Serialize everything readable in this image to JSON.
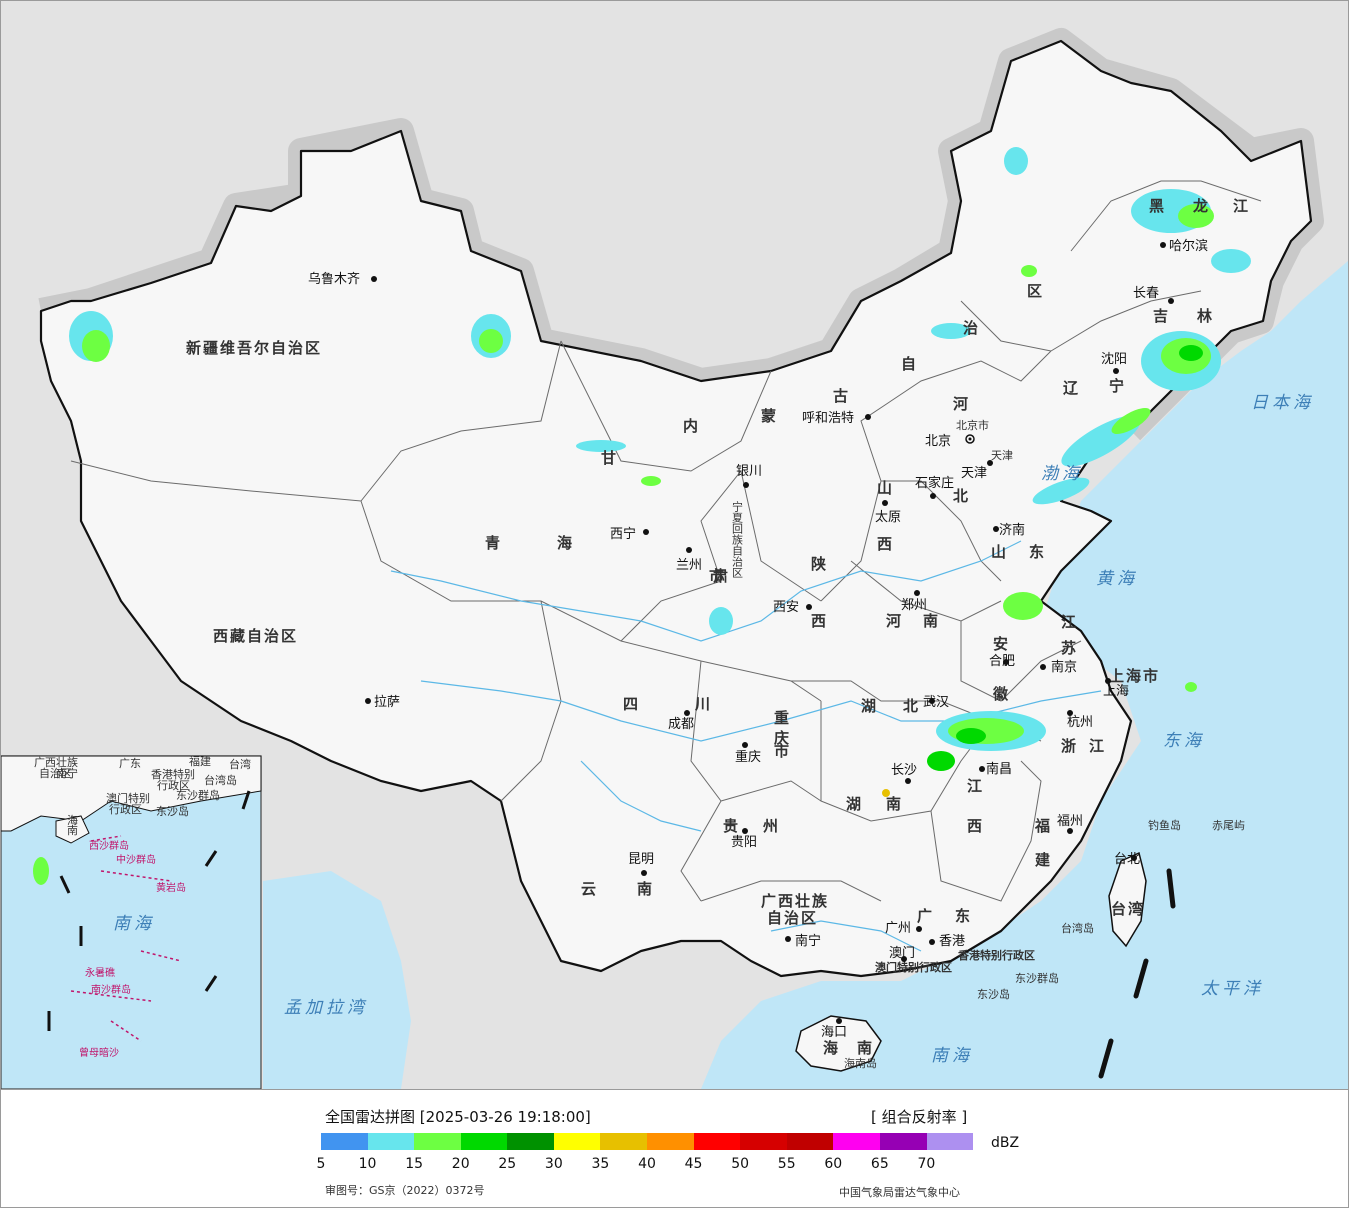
{
  "map": {
    "province_labels": [
      {
        "id": "xinjiang",
        "text": "新疆维吾尔自治区"
      },
      {
        "id": "xizang",
        "text": "西藏自治区"
      },
      {
        "id": "qinghai-1",
        "text": "青"
      },
      {
        "id": "qinghai-2",
        "text": "海"
      },
      {
        "id": "gansu-1",
        "text": "甘"
      },
      {
        "id": "gansu-2",
        "text": "肃"
      },
      {
        "id": "neimenggu-1",
        "text": "内"
      },
      {
        "id": "neimenggu-2",
        "text": "蒙"
      },
      {
        "id": "neimenggu-3",
        "text": "古"
      },
      {
        "id": "neimenggu-4",
        "text": "自"
      },
      {
        "id": "neimenggu-5",
        "text": "治"
      },
      {
        "id": "neimenggu-6",
        "text": "区"
      },
      {
        "id": "heilongjiang-1",
        "text": "黑"
      },
      {
        "id": "heilongjiang-2",
        "text": "龙"
      },
      {
        "id": "heilongjiang-3",
        "text": "江"
      },
      {
        "id": "jilin-1",
        "text": "吉"
      },
      {
        "id": "jilin-2",
        "text": "林"
      },
      {
        "id": "liaoning-1",
        "text": "辽"
      },
      {
        "id": "liaoning-2",
        "text": "宁"
      },
      {
        "id": "hebei-1",
        "text": "河"
      },
      {
        "id": "hebei-2",
        "text": "北"
      },
      {
        "id": "shanxi-1",
        "text": "山"
      },
      {
        "id": "shanxi-2",
        "text": "西"
      },
      {
        "id": "shandong-1",
        "text": "山"
      },
      {
        "id": "shandong-2",
        "text": "东"
      },
      {
        "id": "shaanxi-1",
        "text": "陕"
      },
      {
        "id": "shaanxi-2",
        "text": "西"
      },
      {
        "id": "henan-1",
        "text": "河"
      },
      {
        "id": "henan-2",
        "text": "南"
      },
      {
        "id": "jiangsu-1",
        "text": "江"
      },
      {
        "id": "jiangsu-2",
        "text": "苏"
      },
      {
        "id": "anhui-1",
        "text": "安"
      },
      {
        "id": "anhui-2",
        "text": "徽"
      },
      {
        "id": "shanghai",
        "text": "上海市"
      },
      {
        "id": "zhejiang-1",
        "text": "浙"
      },
      {
        "id": "zhejiang-2",
        "text": "江"
      },
      {
        "id": "hubei-1",
        "text": "湖"
      },
      {
        "id": "hubei-2",
        "text": "北"
      },
      {
        "id": "sichuan-1",
        "text": "四"
      },
      {
        "id": "sichuan-2",
        "text": "川"
      },
      {
        "id": "chongqing-1",
        "text": "重"
      },
      {
        "id": "chongqing-2",
        "text": "庆"
      },
      {
        "id": "chongqing-3",
        "text": "市"
      },
      {
        "id": "hunan-1",
        "text": "湖"
      },
      {
        "id": "hunan-2",
        "text": "南"
      },
      {
        "id": "jiangxi-1",
        "text": "江"
      },
      {
        "id": "jiangxi-2",
        "text": "西"
      },
      {
        "id": "fujian-1",
        "text": "福"
      },
      {
        "id": "fujian-2",
        "text": "建"
      },
      {
        "id": "guizhou-1",
        "text": "贵"
      },
      {
        "id": "guizhou-2",
        "text": "州"
      },
      {
        "id": "yunnan-1",
        "text": "云"
      },
      {
        "id": "yunnan-2",
        "text": "南"
      },
      {
        "id": "guangxi-1",
        "text": "广西壮族"
      },
      {
        "id": "guangxi-2",
        "text": "自治区"
      },
      {
        "id": "guangdong-1",
        "text": "广"
      },
      {
        "id": "guangdong-2",
        "text": "东"
      },
      {
        "id": "hainan-1",
        "text": "海"
      },
      {
        "id": "hainan-2",
        "text": "南"
      },
      {
        "id": "ningxia",
        "text": "宁夏回族自治区"
      },
      {
        "id": "tianjin",
        "text": "天津"
      },
      {
        "id": "beijing-small",
        "text": "北京市"
      },
      {
        "id": "taiwan",
        "text": "台湾"
      },
      {
        "id": "hongkong-sar",
        "text": "香港特别行政区"
      },
      {
        "id": "macao-sar",
        "text": "澳门特别行政区"
      },
      {
        "id": "gansu-city",
        "text": "市"
      }
    ],
    "cities": [
      {
        "id": "urumqi",
        "text": "乌鲁木齐"
      },
      {
        "id": "lhasa",
        "text": "拉萨"
      },
      {
        "id": "xining",
        "text": "西宁"
      },
      {
        "id": "lanzhou",
        "text": "兰州"
      },
      {
        "id": "yinchuan",
        "text": "银川"
      },
      {
        "id": "hohhot",
        "text": "呼和浩特"
      },
      {
        "id": "harbin",
        "text": "哈尔滨"
      },
      {
        "id": "changchun",
        "text": "长春"
      },
      {
        "id": "shenyang",
        "text": "沈阳"
      },
      {
        "id": "beijing",
        "text": "北京"
      },
      {
        "id": "tianjin-city",
        "text": "天津"
      },
      {
        "id": "shijiazhuang",
        "text": "石家庄"
      },
      {
        "id": "taiyuan",
        "text": "太原"
      },
      {
        "id": "jinan",
        "text": "济南"
      },
      {
        "id": "zhengzhou",
        "text": "郑州"
      },
      {
        "id": "xian",
        "text": "西安"
      },
      {
        "id": "hefei",
        "text": "合肥"
      },
      {
        "id": "nanjing",
        "text": "南京"
      },
      {
        "id": "shanghai-city",
        "text": "上海"
      },
      {
        "id": "hangzhou",
        "text": "杭州"
      },
      {
        "id": "wuhan",
        "text": "武汉"
      },
      {
        "id": "chengdu",
        "text": "成都"
      },
      {
        "id": "chongqing",
        "text": "重庆"
      },
      {
        "id": "changsha",
        "text": "长沙"
      },
      {
        "id": "nanchang",
        "text": "南昌"
      },
      {
        "id": "fuzhou",
        "text": "福州"
      },
      {
        "id": "guiyang",
        "text": "贵阳"
      },
      {
        "id": "kunming",
        "text": "昆明"
      },
      {
        "id": "nanning",
        "text": "南宁"
      },
      {
        "id": "guangzhou",
        "text": "广州"
      },
      {
        "id": "hongkong",
        "text": "香港"
      },
      {
        "id": "macao",
        "text": "澳门"
      },
      {
        "id": "haikou",
        "text": "海口"
      },
      {
        "id": "taipei",
        "text": "台北"
      }
    ],
    "seas": [
      {
        "id": "japan-sea",
        "text": "日本海"
      },
      {
        "id": "bohai",
        "text": "渤海"
      },
      {
        "id": "yellow-sea",
        "text": "黄海"
      },
      {
        "id": "east-sea",
        "text": "东海"
      },
      {
        "id": "south-sea",
        "text": "南海"
      },
      {
        "id": "pacific",
        "text": "太平洋"
      },
      {
        "id": "bengal",
        "text": "孟加拉湾"
      }
    ],
    "islands": [
      {
        "id": "diaoyu",
        "text": "钓鱼岛"
      },
      {
        "id": "chiwei",
        "text": "赤尾屿"
      },
      {
        "id": "taiwan-island",
        "text": "台湾岛"
      },
      {
        "id": "dongsha-group",
        "text": "东沙群岛"
      },
      {
        "id": "dongsha",
        "text": "东沙岛"
      },
      {
        "id": "hainan-island",
        "text": "海南岛"
      }
    ],
    "inset": {
      "labels": [
        {
          "id": "inset-guangxi",
          "text": "广西壮族"
        },
        {
          "id": "inset-guangxi-2",
          "text": "自治区"
        },
        {
          "id": "inset-nanning",
          "text": "南宁"
        },
        {
          "id": "inset-guangdong",
          "text": "广东"
        },
        {
          "id": "inset-fujian",
          "text": "福建"
        },
        {
          "id": "inset-taiwan",
          "text": "台湾"
        },
        {
          "id": "inset-hk",
          "text": "香港特别"
        },
        {
          "id": "inset-hk-2",
          "text": "行政区"
        },
        {
          "id": "inset-macao",
          "text": "澳门特别"
        },
        {
          "id": "inset-macao-2",
          "text": "行政区"
        },
        {
          "id": "inset-taiwan-island",
          "text": "台湾岛"
        },
        {
          "id": "inset-dongsha",
          "text": "东沙群岛"
        },
        {
          "id": "inset-dongsha-2",
          "text": "东沙岛"
        },
        {
          "id": "inset-hainan-1",
          "text": "海"
        },
        {
          "id": "inset-hainan-2",
          "text": "南"
        },
        {
          "id": "inset-xisha",
          "text": "西沙群岛"
        },
        {
          "id": "inset-zhongsha",
          "text": "中沙群岛"
        },
        {
          "id": "inset-huangyan",
          "text": "黄岩岛"
        },
        {
          "id": "inset-south-sea",
          "text": "南海"
        },
        {
          "id": "inset-nansha",
          "text": "南沙群岛"
        },
        {
          "id": "inset-yongshu",
          "text": "永暑礁"
        },
        {
          "id": "inset-zengmu",
          "text": "曾母暗沙"
        }
      ]
    },
    "colors": {
      "land": "#f7f7f7",
      "outside": "#e3e3e3",
      "sea": "#bfe6f7",
      "border": "#111111",
      "province_border": "#6b6b6b",
      "river": "#5cb8e6"
    }
  },
  "legend": {
    "title": "全国雷达拼图 [2025-03-26 19:18:00]",
    "product": "[ 组合反射率 ]",
    "unit": "dBZ",
    "colors": [
      "#4194f0",
      "#67e5ed",
      "#6dff42",
      "#00d900",
      "#009100",
      "#ffff00",
      "#e7c000",
      "#ff9000",
      "#ff0000",
      "#d60000",
      "#c00000",
      "#ff00f0",
      "#9600b4",
      "#ad90f0"
    ],
    "ticks": [
      "5",
      "10",
      "15",
      "20",
      "25",
      "30",
      "35",
      "40",
      "45",
      "50",
      "55",
      "60",
      "65",
      "70"
    ],
    "review_number": "审图号：GS京（2022）0372号",
    "agency": "中国气象局雷达气象中心"
  }
}
